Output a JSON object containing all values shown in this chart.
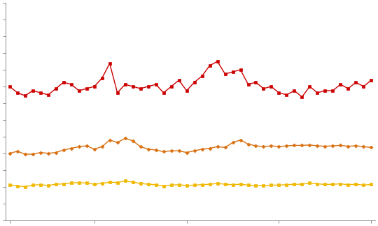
{
  "red_values": [
    3200,
    3050,
    2980,
    3100,
    3050,
    3000,
    3150,
    3300,
    3250,
    3100,
    3150,
    3200,
    3400,
    3750,
    3050,
    3250,
    3200,
    3150,
    3200,
    3250,
    3050,
    3200,
    3350,
    3100,
    3300,
    3450,
    3700,
    3800,
    3500,
    3550,
    3600,
    3250,
    3300,
    3150,
    3200,
    3050,
    3000,
    3100,
    2950,
    3200,
    3050,
    3100,
    3100,
    3250,
    3150,
    3300,
    3200,
    3350
  ],
  "orange_values": [
    1600,
    1650,
    1580,
    1580,
    1620,
    1600,
    1620,
    1680,
    1720,
    1760,
    1780,
    1700,
    1760,
    1920,
    1860,
    1960,
    1900,
    1760,
    1700,
    1680,
    1640,
    1660,
    1660,
    1620,
    1660,
    1700,
    1720,
    1760,
    1740,
    1860,
    1920,
    1820,
    1780,
    1760,
    1780,
    1760,
    1780,
    1790,
    1790,
    1800,
    1780,
    1770,
    1780,
    1790,
    1770,
    1780,
    1760,
    1740
  ],
  "yellow_values": [
    850,
    820,
    800,
    840,
    850,
    830,
    860,
    870,
    890,
    900,
    890,
    860,
    880,
    910,
    900,
    940,
    910,
    880,
    860,
    850,
    820,
    840,
    850,
    830,
    840,
    850,
    860,
    880,
    860,
    850,
    860,
    840,
    830,
    830,
    840,
    840,
    850,
    860,
    860,
    890,
    870,
    855,
    860,
    870,
    850,
    860,
    840,
    855
  ],
  "red_color": "#cc0000",
  "orange_color": "#d97010",
  "yellow_color": "#f0b800",
  "n_points": 48,
  "background_color": "#ffffff",
  "ylim_min": 0,
  "ylim_max": 5200,
  "ytick_step": 400,
  "x_tick_positions": [
    0,
    11,
    23,
    35,
    47
  ],
  "figwidth": 5.4,
  "figheight": 3.24,
  "dpi": 100
}
